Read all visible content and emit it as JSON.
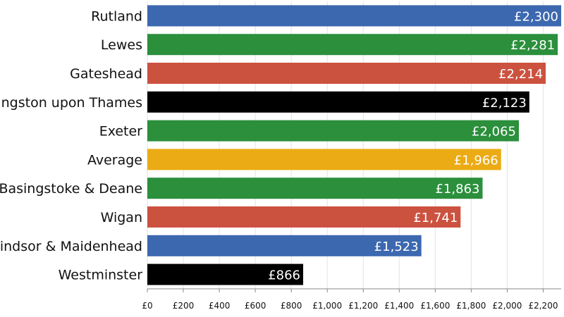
{
  "chart_data": {
    "type": "bar",
    "orientation": "horizontal",
    "title": "",
    "xlabel": "",
    "ylabel": "",
    "categories": [
      "Rutland",
      "Lewes",
      "Gateshead",
      "Kingston upon Thames",
      "Exeter",
      "Average",
      "Basingstoke & Deane",
      "Wigan",
      "Windsor & Maidenhead",
      "Westminster"
    ],
    "values": [
      2300,
      2281,
      2214,
      2123,
      2065,
      1966,
      1863,
      1741,
      1523,
      866
    ],
    "value_labels": [
      "£2,300",
      "£2,281",
      "£2,214",
      "£2,123",
      "£2,065",
      "£1,966",
      "£1,863",
      "£1,741",
      "£1,523",
      "£866"
    ],
    "bar_colors": [
      "#3c68b0",
      "#2b8f3c",
      "#cc5240",
      "#000000",
      "#2b8f3c",
      "#ebab14",
      "#2b8f3c",
      "#cc5240",
      "#3c68b0",
      "#000000"
    ],
    "xlim": [
      0,
      2300
    ],
    "xticks": [
      0,
      200,
      400,
      600,
      800,
      1000,
      1200,
      1400,
      1600,
      1800,
      2000,
      2200
    ],
    "xtick_labels": [
      "£0",
      "£200",
      "£400",
      "£600",
      "£800",
      "£1,000",
      "£1,200",
      "£1,400",
      "£1,600",
      "£1,800",
      "£2,000",
      "£2,200"
    ],
    "grid": true,
    "legend": "none"
  }
}
